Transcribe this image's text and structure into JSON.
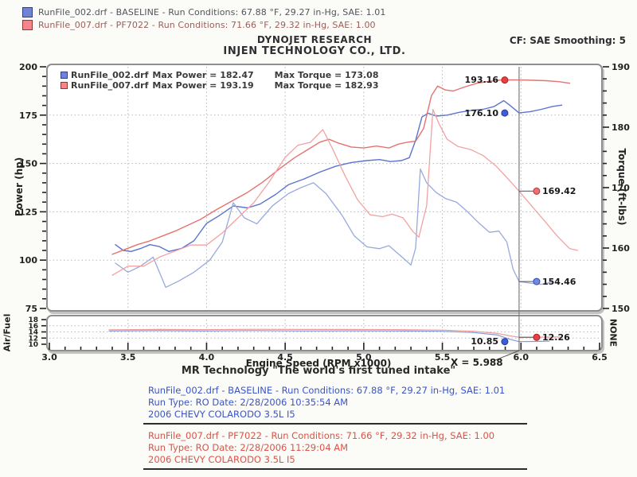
{
  "header": {
    "legend": [
      {
        "text": "RunFile_002.drf - BASELINE  -  Run Conditions: 67.88 °F, 29.27 in-Hg, SAE: 1.01",
        "swatch_fill": "#7282d4",
        "swatch_border": "#2d3e8f",
        "text_color": "#54545e"
      },
      {
        "text": "RunFile_007.drf - PF7022  -  Run Conditions: 71.66 °F, 29.32 in-Hg, SAE: 1.00",
        "swatch_fill": "#f2858d",
        "swatch_border": "#99332e",
        "text_color": "#a25b55"
      }
    ],
    "title1": "DYNOJET RESEARCH",
    "title2": "INJEN TECHNOLOGY CO., LTD.",
    "cf": "CF: SAE  Smoothing: 5"
  },
  "chart": {
    "type": "line",
    "xlabel": "Engine Speed (RPM x1000)",
    "xlim": [
      3.0,
      6.5
    ],
    "x_axis": {
      "ticks": [
        "3.0",
        "3.5",
        "4.0",
        "4.5",
        "5.0",
        "5.5",
        "6.0",
        "6.5"
      ]
    },
    "y_left": {
      "label": "Power (hp)",
      "lim": [
        75,
        200
      ],
      "ticks": [
        "75",
        "100",
        "125",
        "150",
        "175",
        "200"
      ]
    },
    "y_right": {
      "label": "Torque (ft-lbs)",
      "lim": [
        150,
        190
      ],
      "ticks": [
        "150",
        "160",
        "170",
        "180",
        "190"
      ]
    },
    "af": {
      "label": "Air/Fuel",
      "right_label": "NONE",
      "lim": [
        10,
        18
      ],
      "ticks": [
        "10",
        "12",
        "14",
        "16",
        "18"
      ]
    },
    "grid": "dotted",
    "inner_legend": [
      {
        "file": "RunFile_002.drf",
        "power": "Max Power = 182.47",
        "torque": "Max Torque = 173.08",
        "swatch_fill": "#7282d4",
        "swatch_border": "#2d3e8f"
      },
      {
        "file": "RunFile_007.drf",
        "power": "Max Power = 193.19",
        "torque": "Max Torque = 182.93",
        "swatch_fill": "#f2858d",
        "swatch_border": "#99332e"
      }
    ],
    "cursor": {
      "x": 5.988,
      "label": "X = 5.988",
      "markers": [
        {
          "value": "193.16",
          "axis": "hp",
          "y": 193.16,
          "color": "#e84040",
          "edge": "#a82424",
          "side": "left",
          "connector": false
        },
        {
          "value": "176.10",
          "axis": "hp",
          "y": 176.1,
          "color": "#3f5ed6",
          "edge": "#203a9e",
          "side": "left",
          "connector": false
        },
        {
          "value": "169.42",
          "axis": "tq",
          "y": 169.42,
          "color": "#ee7070",
          "edge": "#b03636",
          "side": "right",
          "connector": true
        },
        {
          "value": "154.46",
          "axis": "tq",
          "y": 154.46,
          "color": "#6f8ae0",
          "edge": "#2c49ad",
          "side": "right",
          "connector": true
        },
        {
          "value": "10.85",
          "axis": "af",
          "y": 10.85,
          "color": "#3f5ed6",
          "edge": "#203a9e",
          "side": "left",
          "connector": false
        },
        {
          "value": "12.26",
          "axis": "af",
          "y": 12.26,
          "color": "#e84040",
          "edge": "#a82424",
          "side": "right",
          "connector": true
        }
      ]
    },
    "chart_data": {
      "note": "series duplicated below for rendering",
      "max_power": {
        "baseline": 182.47,
        "pf7022": 193.19
      },
      "max_torque": {
        "baseline": 173.08,
        "pf7022": 182.93
      }
    },
    "series": [
      {
        "id": "power-baseline",
        "name": "RunFile_002.drf Power",
        "axis": "hp",
        "color": "#5a74d0",
        "width": 1.4,
        "points": [
          [
            3.42,
            108
          ],
          [
            3.47,
            105
          ],
          [
            3.52,
            104.5
          ],
          [
            3.58,
            106
          ],
          [
            3.64,
            108
          ],
          [
            3.7,
            107
          ],
          [
            3.76,
            104.5
          ],
          [
            3.84,
            106
          ],
          [
            3.92,
            110
          ],
          [
            4.0,
            119
          ],
          [
            4.08,
            123
          ],
          [
            4.17,
            128
          ],
          [
            4.26,
            127
          ],
          [
            4.34,
            129
          ],
          [
            4.44,
            134
          ],
          [
            4.52,
            139
          ],
          [
            4.62,
            142
          ],
          [
            4.72,
            145.5
          ],
          [
            4.82,
            148.5
          ],
          [
            4.92,
            150.5
          ],
          [
            5.02,
            151.5
          ],
          [
            5.1,
            152
          ],
          [
            5.17,
            151
          ],
          [
            5.24,
            151.5
          ],
          [
            5.29,
            153
          ],
          [
            5.33,
            162
          ],
          [
            5.37,
            174
          ],
          [
            5.41,
            176
          ],
          [
            5.46,
            174.5
          ],
          [
            5.53,
            175
          ],
          [
            5.61,
            176.5
          ],
          [
            5.69,
            177.5
          ],
          [
            5.76,
            178
          ],
          [
            5.83,
            179.5
          ],
          [
            5.89,
            182.47
          ],
          [
            5.93,
            180
          ],
          [
            5.988,
            176.1
          ],
          [
            6.06,
            176.8
          ],
          [
            6.13,
            178
          ],
          [
            6.2,
            179.5
          ],
          [
            6.26,
            180.2
          ]
        ]
      },
      {
        "id": "power-pf7022",
        "name": "RunFile_007.drf Power",
        "axis": "hp",
        "color": "#e4736f",
        "width": 1.4,
        "points": [
          [
            3.4,
            103
          ],
          [
            3.48,
            105.5
          ],
          [
            3.56,
            108
          ],
          [
            3.64,
            110
          ],
          [
            3.72,
            112.5
          ],
          [
            3.8,
            115
          ],
          [
            3.88,
            118
          ],
          [
            3.96,
            121
          ],
          [
            4.06,
            126
          ],
          [
            4.16,
            130.5
          ],
          [
            4.26,
            135
          ],
          [
            4.36,
            140.5
          ],
          [
            4.46,
            147
          ],
          [
            4.56,
            153
          ],
          [
            4.64,
            157
          ],
          [
            4.72,
            161
          ],
          [
            4.78,
            162.5
          ],
          [
            4.84,
            160.5
          ],
          [
            4.92,
            158.5
          ],
          [
            5.0,
            158
          ],
          [
            5.08,
            159
          ],
          [
            5.16,
            158
          ],
          [
            5.22,
            160
          ],
          [
            5.28,
            161
          ],
          [
            5.33,
            161.5
          ],
          [
            5.38,
            168
          ],
          [
            5.43,
            185
          ],
          [
            5.47,
            190
          ],
          [
            5.52,
            188
          ],
          [
            5.57,
            187.5
          ],
          [
            5.64,
            189.5
          ],
          [
            5.72,
            191.5
          ],
          [
            5.8,
            192.5
          ],
          [
            5.88,
            193.19
          ],
          [
            5.95,
            193.2
          ],
          [
            5.988,
            193.16
          ],
          [
            6.08,
            193
          ],
          [
            6.16,
            192.8
          ],
          [
            6.24,
            192.3
          ],
          [
            6.31,
            191.5
          ]
        ]
      },
      {
        "id": "torque-baseline",
        "name": "RunFile_002.drf Torque",
        "axis": "tq",
        "color": "#97a9de",
        "width": 1.3,
        "points": [
          [
            3.42,
            157.5
          ],
          [
            3.5,
            156
          ],
          [
            3.58,
            157
          ],
          [
            3.66,
            158.5
          ],
          [
            3.74,
            153.5
          ],
          [
            3.82,
            154.5
          ],
          [
            3.92,
            156
          ],
          [
            4.02,
            158
          ],
          [
            4.1,
            161
          ],
          [
            4.17,
            167.5
          ],
          [
            4.24,
            165
          ],
          [
            4.32,
            164
          ],
          [
            4.42,
            167
          ],
          [
            4.52,
            169
          ],
          [
            4.6,
            170
          ],
          [
            4.68,
            170.8
          ],
          [
            4.76,
            169
          ],
          [
            4.86,
            165.5
          ],
          [
            4.94,
            162
          ],
          [
            5.02,
            160.2
          ],
          [
            5.1,
            159.9
          ],
          [
            5.16,
            160.4
          ],
          [
            5.23,
            158.8
          ],
          [
            5.3,
            157.2
          ],
          [
            5.33,
            160
          ],
          [
            5.36,
            173.08
          ],
          [
            5.4,
            170.8
          ],
          [
            5.46,
            169.2
          ],
          [
            5.52,
            168.2
          ],
          [
            5.59,
            167.6
          ],
          [
            5.66,
            166
          ],
          [
            5.73,
            164.2
          ],
          [
            5.8,
            162.6
          ],
          [
            5.86,
            162.8
          ],
          [
            5.91,
            161
          ],
          [
            5.95,
            156.5
          ],
          [
            5.988,
            154.46
          ],
          [
            6.06,
            154.2
          ],
          [
            6.13,
            154.0
          ],
          [
            6.2,
            154.4
          ]
        ]
      },
      {
        "id": "torque-pf7022",
        "name": "RunFile_007.drf Torque",
        "axis": "tq",
        "color": "#f2a2a2",
        "width": 1.3,
        "points": [
          [
            3.4,
            155.5
          ],
          [
            3.5,
            157
          ],
          [
            3.6,
            157
          ],
          [
            3.7,
            158.5
          ],
          [
            3.8,
            159.5
          ],
          [
            3.9,
            160.5
          ],
          [
            4.0,
            160.5
          ],
          [
            4.1,
            162.5
          ],
          [
            4.2,
            165
          ],
          [
            4.3,
            167.5
          ],
          [
            4.4,
            171
          ],
          [
            4.5,
            175
          ],
          [
            4.58,
            177
          ],
          [
            4.66,
            177.5
          ],
          [
            4.74,
            179.6
          ],
          [
            4.8,
            176.5
          ],
          [
            4.88,
            172
          ],
          [
            4.96,
            168
          ],
          [
            5.04,
            165.5
          ],
          [
            5.12,
            165.2
          ],
          [
            5.18,
            165.6
          ],
          [
            5.25,
            165
          ],
          [
            5.31,
            162.8
          ],
          [
            5.35,
            161.8
          ],
          [
            5.4,
            167
          ],
          [
            5.44,
            182.93
          ],
          [
            5.48,
            180.5
          ],
          [
            5.53,
            178
          ],
          [
            5.6,
            176.8
          ],
          [
            5.68,
            176.3
          ],
          [
            5.76,
            175.3
          ],
          [
            5.84,
            173.6
          ],
          [
            5.92,
            171.4
          ],
          [
            5.988,
            169.42
          ],
          [
            6.07,
            166.9
          ],
          [
            6.15,
            164.5
          ],
          [
            6.23,
            162
          ],
          [
            6.31,
            159.9
          ],
          [
            6.36,
            159.6
          ]
        ]
      },
      {
        "id": "af-baseline",
        "name": "RunFile_002.drf Air/Fuel",
        "axis": "af",
        "color": "#8099d8",
        "width": 1.2,
        "points": [
          [
            3.38,
            14.3
          ],
          [
            3.7,
            14.4
          ],
          [
            4.0,
            14.3
          ],
          [
            4.3,
            14.45
          ],
          [
            4.6,
            14.3
          ],
          [
            4.9,
            14.35
          ],
          [
            5.2,
            14.3
          ],
          [
            5.5,
            14.2
          ],
          [
            5.7,
            13.8
          ],
          [
            5.85,
            13.0
          ],
          [
            5.93,
            11.6
          ],
          [
            5.988,
            10.85
          ],
          [
            6.08,
            10.9
          ],
          [
            6.18,
            11.0
          ]
        ]
      },
      {
        "id": "af-pf7022",
        "name": "RunFile_007.drf Air/Fuel",
        "axis": "af",
        "color": "#ef9a9a",
        "width": 1.2,
        "points": [
          [
            3.38,
            14.7
          ],
          [
            3.7,
            14.8
          ],
          [
            4.0,
            14.75
          ],
          [
            4.3,
            14.85
          ],
          [
            4.6,
            14.8
          ],
          [
            4.9,
            14.8
          ],
          [
            5.2,
            14.75
          ],
          [
            5.5,
            14.6
          ],
          [
            5.7,
            14.2
          ],
          [
            5.85,
            13.5
          ],
          [
            5.93,
            12.7
          ],
          [
            5.988,
            12.26
          ],
          [
            6.1,
            12.3
          ],
          [
            6.25,
            12.35
          ]
        ]
      }
    ]
  },
  "footer": {
    "title": "MR Technology  \"The world's first tuned intake\"",
    "blue_block": {
      "color": "#3b55c4",
      "lines": [
        "RunFile_002.drf - BASELINE  -  Run Conditions: 67.88 °F, 29.27 in-Hg, SAE: 1.01",
        "Run Type: RO  Date: 2/28/2006 10:35:54 AM",
        "2006 CHEVY COLARODO 3.5L I5"
      ]
    },
    "red_block": {
      "color": "#d9544a",
      "lines": [
        "RunFile_007.drf - PF7022  -  Run Conditions: 71.66 °F, 29.32 in-Hg, SAE: 1.00",
        "Run Type: RO  Date: 2/28/2006 11:29:04 AM",
        "2006 CHEVY COLARODO 3.5L I5"
      ]
    }
  }
}
